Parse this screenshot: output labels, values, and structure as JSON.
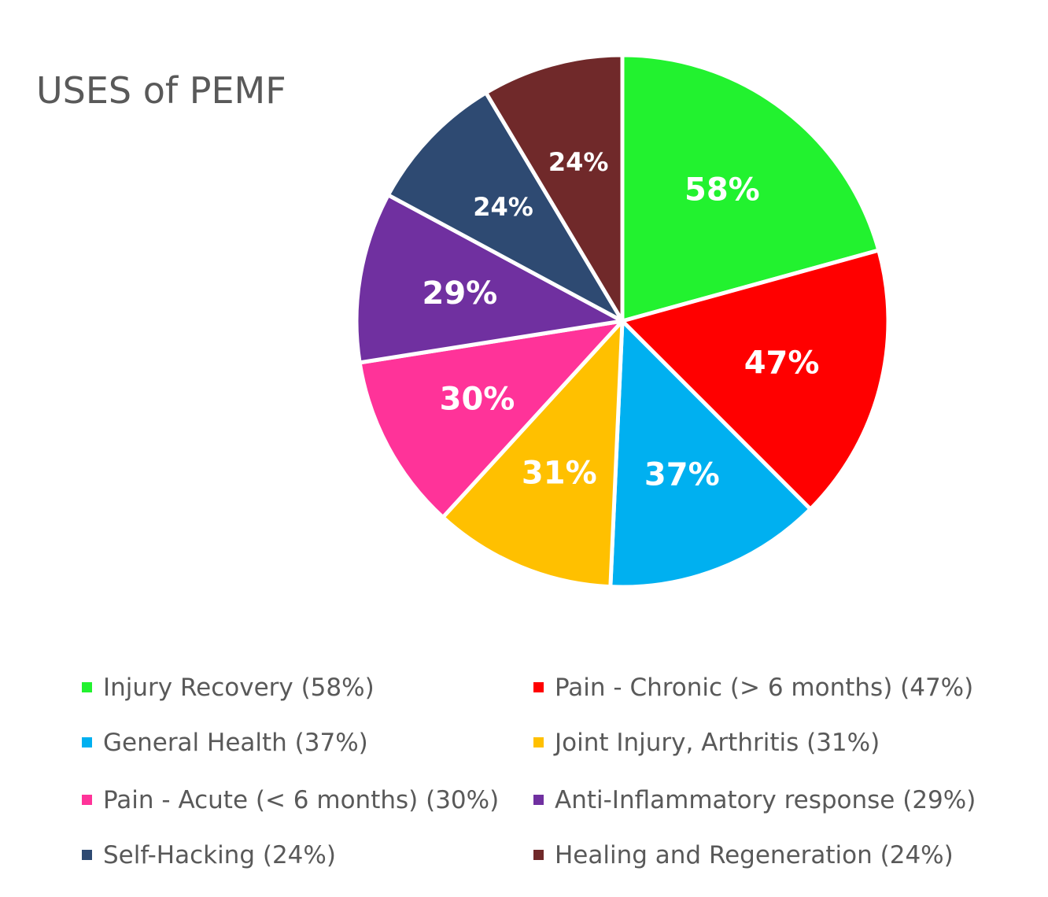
{
  "chart_data": {
    "type": "pie",
    "title": "USES of PEMF",
    "legend_position": "bottom",
    "slices": [
      {
        "name": "Injury Recovery",
        "value": 58,
        "label": "58%",
        "legend": "Injury Recovery (58%)",
        "color": "#22f22f"
      },
      {
        "name": "Pain - Chronic (> 6 months)",
        "value": 47,
        "label": "47%",
        "legend": "Pain - Chronic (> 6 months) (47%)",
        "color": "#ff0000"
      },
      {
        "name": "General Health",
        "value": 37,
        "label": "37%",
        "legend": "General Health (37%)",
        "color": "#00b0f0"
      },
      {
        "name": "Joint Injury, Arthritis",
        "value": 31,
        "label": "31%",
        "legend": "Joint Injury, Arthritis (31%)",
        "color": "#ffc000"
      },
      {
        "name": "Pain - Acute (< 6 months)",
        "value": 30,
        "label": "30%",
        "legend": "Pain - Acute (< 6 months) (30%)",
        "color": "#ff3399"
      },
      {
        "name": "Anti-Inflammatory response",
        "value": 29,
        "label": "29%",
        "legend": "Anti-Inflammatory response (29%)",
        "color": "#7030a0"
      },
      {
        "name": "Self-Hacking",
        "value": 24,
        "label": "24%",
        "legend": "Self-Hacking (24%)",
        "color": "#2e4a72"
      },
      {
        "name": "Healing and Regeneration",
        "value": 24,
        "label": "24%",
        "legend": "Healing and Regeneration (24%)",
        "color": "#70292a"
      }
    ]
  }
}
